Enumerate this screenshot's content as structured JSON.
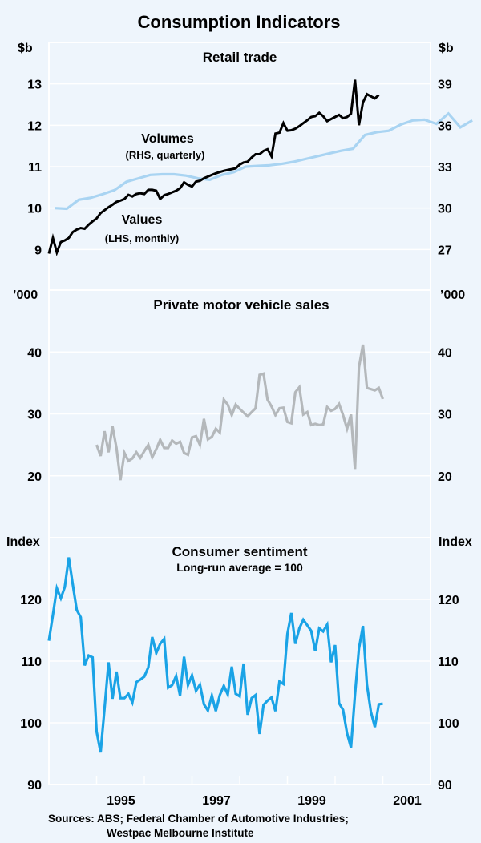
{
  "chart_data": {
    "title": "Consumption Indicators",
    "x_axis": {
      "range": [
        1994,
        2002
      ],
      "tick_labels": [
        "1995",
        "1997",
        "1999",
        "2001"
      ],
      "tick_boundaries": [
        1995,
        1996,
        1997,
        1998,
        1999,
        2000,
        2001
      ]
    },
    "source": [
      "Sources: ABS; Federal Chamber of Automotive Industries;",
      "Westpac Melbourne Institute"
    ],
    "panels": [
      {
        "type": "line",
        "title": "Retail trade",
        "subtitle": "",
        "left_unit": "$b",
        "right_unit": "$b",
        "left_ylim": [
          8,
          14
        ],
        "right_ylim": [
          24,
          42
        ],
        "left_ticks": [
          "9",
          "10",
          "11",
          "12",
          "13"
        ],
        "left_tick_values": [
          9,
          10,
          11,
          12,
          13
        ],
        "right_ticks": [
          "27",
          "30",
          "33",
          "36",
          "39"
        ],
        "right_tick_values": [
          27,
          30,
          33,
          36,
          39
        ],
        "grid": true,
        "series": [
          {
            "name": "Values",
            "label": "Values",
            "label_sub": "(LHS, monthly)",
            "axis": "left",
            "color": "#000000",
            "start": 1994.0,
            "step": 0.08333,
            "values": [
              8.9,
              9.28,
              8.93,
              9.18,
              9.22,
              9.28,
              9.42,
              9.48,
              9.52,
              9.5,
              9.6,
              9.68,
              9.75,
              9.88,
              9.95,
              10.02,
              10.08,
              10.15,
              10.18,
              10.22,
              10.32,
              10.28,
              10.34,
              10.36,
              10.34,
              10.44,
              10.44,
              10.42,
              10.22,
              10.31,
              10.34,
              10.38,
              10.42,
              10.48,
              10.62,
              10.56,
              10.52,
              10.64,
              10.66,
              10.72,
              10.76,
              10.8,
              10.84,
              10.87,
              10.9,
              10.92,
              10.94,
              10.96,
              11.05,
              11.1,
              11.12,
              11.22,
              11.3,
              11.3,
              11.38,
              11.42,
              11.25,
              11.8,
              11.82,
              12.05,
              11.87,
              11.88,
              11.92,
              11.98,
              12.05,
              12.12,
              12.2,
              12.22,
              12.3,
              12.22,
              12.1,
              12.15,
              12.2,
              12.25,
              12.17,
              12.2,
              12.28,
              13.1,
              12.0,
              12.55,
              12.75,
              12.7,
              12.65,
              12.73
            ]
          },
          {
            "name": "Volumes",
            "label": "Volumes",
            "label_sub": "(RHS, quarterly)",
            "axis": "right",
            "color": "#a9d4f2",
            "start": 1994.125,
            "step": 0.25,
            "values": [
              30.0,
              29.95,
              30.6,
              30.75,
              31.0,
              31.3,
              31.9,
              32.15,
              32.4,
              32.45,
              32.45,
              32.35,
              32.15,
              32.05,
              32.4,
              32.6,
              33.0,
              33.05,
              33.1,
              33.2,
              33.35,
              33.55,
              33.75,
              33.95,
              34.15,
              34.3,
              35.3,
              35.5,
              35.6,
              36.05,
              36.35,
              36.4,
              36.1,
              36.85,
              35.85,
              36.35
            ]
          }
        ]
      },
      {
        "type": "line",
        "title": "Private motor vehicle sales",
        "subtitle": "",
        "left_unit": "’000",
        "right_unit": "’000",
        "left_ylim": [
          10,
          50
        ],
        "right_ylim": [
          10,
          50
        ],
        "left_ticks": [
          "20",
          "30",
          "40"
        ],
        "left_tick_values": [
          20,
          30,
          40
        ],
        "right_ticks": [
          "20",
          "30",
          "40"
        ],
        "right_tick_values": [
          20,
          30,
          40
        ],
        "grid": true,
        "series": [
          {
            "name": "Private motor vehicle sales",
            "axis": "left",
            "color": "#b4b8bb",
            "start": 1995.0,
            "step": 0.08333,
            "values": [
              25.0,
              23.2,
              27.2,
              23.8,
              28.0,
              24.5,
              19.3,
              23.7,
              22.4,
              22.8,
              23.8,
              22.9,
              24.0,
              25.0,
              23.0,
              24.3,
              25.8,
              24.5,
              24.5,
              25.7,
              25.2,
              25.5,
              23.7,
              23.4,
              26.2,
              26.4,
              25.0,
              29.2,
              25.9,
              26.3,
              27.6,
              27.0,
              32.3,
              31.5,
              29.8,
              31.5,
              30.8,
              30.2,
              29.6,
              30.3,
              30.9,
              36.3,
              36.5,
              32.3,
              31.2,
              29.8,
              30.9,
              31.0,
              28.7,
              28.5,
              33.5,
              34.3,
              29.9,
              30.3,
              28.2,
              28.4,
              28.2,
              28.3,
              31.1,
              30.5,
              30.8,
              31.6,
              29.8,
              27.6,
              29.9,
              21.1,
              37.5,
              41.2,
              34.2,
              34.0,
              33.8,
              34.2,
              32.4
            ]
          }
        ]
      },
      {
        "type": "line",
        "title": "Consumer sentiment",
        "subtitle": "Long-run average = 100",
        "left_unit": "Index",
        "right_unit": "Index",
        "left_ylim": [
          90,
          130
        ],
        "right_ylim": [
          90,
          130
        ],
        "left_ticks": [
          "90",
          "100",
          "110",
          "120"
        ],
        "left_tick_values": [
          90,
          100,
          110,
          120
        ],
        "right_ticks": [
          "90",
          "100",
          "110",
          "120"
        ],
        "right_tick_values": [
          90,
          100,
          110,
          120
        ],
        "grid": true,
        "series": [
          {
            "name": "Consumer sentiment",
            "axis": "left",
            "color": "#1aa3e6",
            "start": 1994.0,
            "step": 0.08333,
            "values": [
              113.3,
              117.5,
              121.8,
              120.2,
              122.0,
              126.8,
              122.5,
              118.3,
              117.1,
              109.3,
              110.9,
              110.6,
              98.6,
              95.2,
              102.3,
              109.8,
              103.9,
              108.3,
              104.0,
              104.0,
              104.7,
              103.3,
              106.6,
              107.0,
              107.5,
              109.0,
              113.9,
              111.3,
              112.8,
              113.6,
              105.7,
              106.1,
              107.6,
              104.4,
              110.7,
              106.1,
              107.7,
              105.2,
              106.2,
              103.0,
              102.0,
              104.4,
              101.9,
              104.5,
              106.0,
              104.6,
              109.1,
              104.7,
              104.3,
              109.6,
              101.3,
              104.0,
              104.5,
              98.2,
              102.9,
              103.6,
              104.1,
              101.9,
              106.7,
              106.3,
              114.4,
              117.8,
              112.8,
              115.3,
              116.7,
              115.8,
              114.9,
              111.6,
              115.3,
              114.8,
              115.9,
              109.8,
              112.6,
              103.2,
              102.1,
              98.3,
              96.0,
              104.6,
              112.0,
              115.7,
              106.2,
              101.8,
              99.3,
              103.0,
              103.1
            ]
          }
        ]
      }
    ]
  }
}
